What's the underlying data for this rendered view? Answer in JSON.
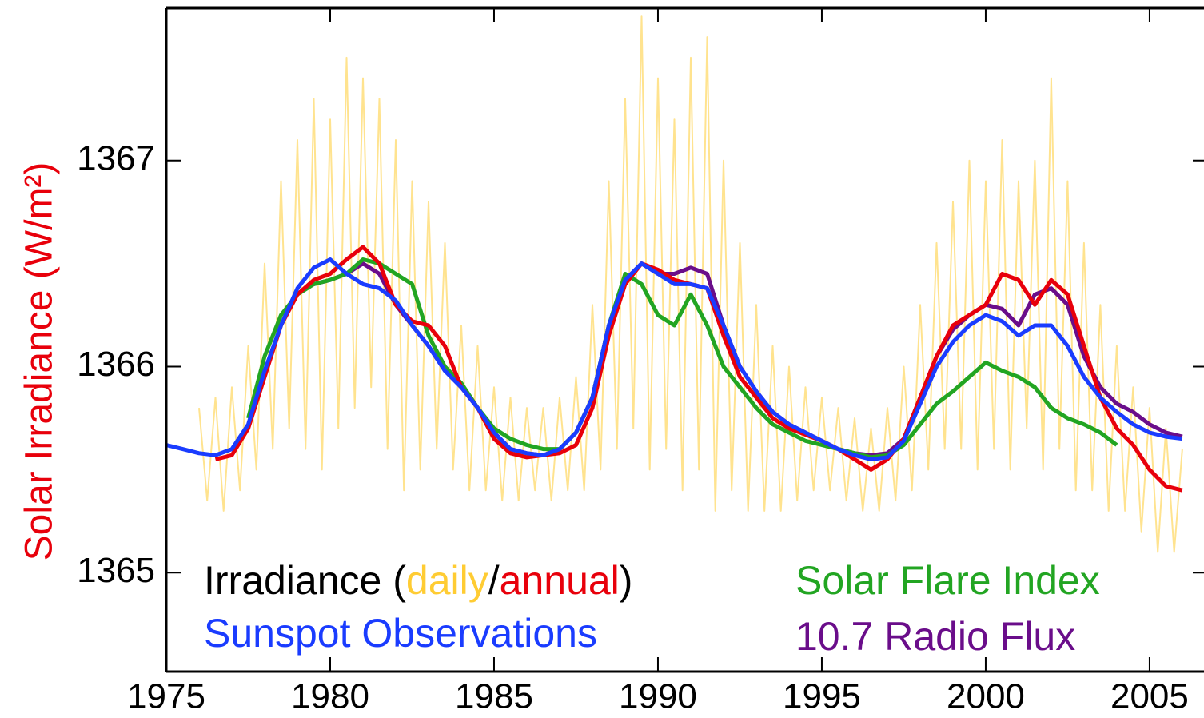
{
  "chart_data": {
    "type": "line",
    "y_label": "Solar Irradiance (W/m²)",
    "legend_prefix": "Irradiance (",
    "legend_separator": "/",
    "legend_suffix": ")",
    "xlim": [
      1975,
      2006.66
    ],
    "ylim": [
      1364.52,
      1367.74
    ],
    "xticks": [
      1975,
      1980,
      1985,
      1990,
      1995,
      2000,
      2005
    ],
    "yticks": [
      1365,
      1366,
      1367
    ],
    "x": [
      1975,
      1975.5,
      1976,
      1976.5,
      1977,
      1977.5,
      1978,
      1978.5,
      1979,
      1979.5,
      1980,
      1980.5,
      1981,
      1981.5,
      1982,
      1982.5,
      1983,
      1983.5,
      1984,
      1984.5,
      1985,
      1985.5,
      1986,
      1986.5,
      1987,
      1987.5,
      1988,
      1988.5,
      1989,
      1989.5,
      1990,
      1990.5,
      1991,
      1991.5,
      1992,
      1992.5,
      1993,
      1993.5,
      1994,
      1994.5,
      1995,
      1995.5,
      1996,
      1996.5,
      1997,
      1997.5,
      1998,
      1998.5,
      1999,
      1999.5,
      2000,
      2000.5,
      2001,
      2001.5,
      2002,
      2002.5,
      2003,
      2003.5,
      2004,
      2004.5,
      2005,
      2005.5,
      2006
    ],
    "daily": {
      "name": "daily",
      "color": "#ffcc33",
      "x": [
        1976,
        1976.25,
        1976.5,
        1976.75,
        1977,
        1977.25,
        1977.5,
        1977.75,
        1978,
        1978.25,
        1978.5,
        1978.75,
        1979,
        1979.25,
        1979.5,
        1979.75,
        1980,
        1980.25,
        1980.5,
        1980.75,
        1981,
        1981.25,
        1981.5,
        1981.75,
        1982,
        1982.25,
        1982.5,
        1982.75,
        1983,
        1983.25,
        1983.5,
        1983.75,
        1984,
        1984.25,
        1984.5,
        1984.75,
        1985,
        1985.25,
        1985.5,
        1985.75,
        1986,
        1986.25,
        1986.5,
        1986.75,
        1987,
        1987.25,
        1987.5,
        1987.75,
        1988,
        1988.25,
        1988.5,
        1988.75,
        1989,
        1989.25,
        1989.5,
        1989.75,
        1990,
        1990.25,
        1990.5,
        1990.75,
        1991,
        1991.25,
        1991.5,
        1991.75,
        1992,
        1992.25,
        1992.5,
        1992.75,
        1993,
        1993.25,
        1993.5,
        1993.75,
        1994,
        1994.25,
        1994.5,
        1994.75,
        1995,
        1995.25,
        1995.5,
        1995.75,
        1996,
        1996.25,
        1996.5,
        1996.75,
        1997,
        1997.25,
        1997.5,
        1997.75,
        1998,
        1998.25,
        1998.5,
        1998.75,
        1999,
        1999.25,
        1999.5,
        1999.75,
        2000,
        2000.25,
        2000.5,
        2000.75,
        2001,
        2001.25,
        2001.5,
        2001.75,
        2002,
        2002.25,
        2002.5,
        2002.75,
        2003,
        2003.25,
        2003.5,
        2003.75,
        2004,
        2004.25,
        2004.5,
        2004.75,
        2005,
        2005.25,
        2005.5,
        2005.75,
        2006
      ],
      "values": [
        1365.8,
        1365.35,
        1365.85,
        1365.3,
        1365.9,
        1365.4,
        1366.1,
        1365.5,
        1366.5,
        1365.6,
        1366.9,
        1365.7,
        1367.1,
        1365.6,
        1367.3,
        1365.5,
        1367.2,
        1365.7,
        1367.5,
        1365.8,
        1367.4,
        1365.9,
        1367.3,
        1365.6,
        1367.1,
        1365.4,
        1366.9,
        1365.5,
        1366.8,
        1365.6,
        1366.6,
        1365.5,
        1366.2,
        1365.4,
        1366.1,
        1365.4,
        1365.9,
        1365.35,
        1365.85,
        1365.35,
        1365.8,
        1365.4,
        1365.8,
        1365.35,
        1365.85,
        1365.4,
        1365.95,
        1365.4,
        1366.3,
        1365.5,
        1366.9,
        1365.6,
        1367.3,
        1365.7,
        1367.7,
        1365.5,
        1367.4,
        1365.6,
        1367.2,
        1365.4,
        1367.5,
        1365.5,
        1367.6,
        1365.3,
        1367.0,
        1365.4,
        1366.6,
        1365.3,
        1366.3,
        1365.3,
        1366.1,
        1365.3,
        1366.0,
        1365.35,
        1365.9,
        1365.4,
        1365.85,
        1365.4,
        1365.8,
        1365.35,
        1365.75,
        1365.3,
        1365.7,
        1365.3,
        1365.8,
        1365.35,
        1366.0,
        1365.4,
        1366.3,
        1365.5,
        1366.6,
        1365.6,
        1366.8,
        1365.6,
        1367.0,
        1365.5,
        1366.9,
        1365.6,
        1367.1,
        1365.5,
        1366.9,
        1365.7,
        1367.0,
        1365.5,
        1367.4,
        1365.6,
        1366.9,
        1365.4,
        1366.6,
        1365.4,
        1366.3,
        1365.3,
        1366.1,
        1365.3,
        1365.9,
        1365.2,
        1365.8,
        1365.1,
        1365.7,
        1365.1,
        1365.6
      ]
    },
    "series": [
      {
        "name": "10.7 Radio Flux",
        "color": "#6a0d8a",
        "values": [
          null,
          null,
          null,
          null,
          null,
          null,
          null,
          null,
          null,
          1366.4,
          1366.42,
          1366.45,
          1366.5,
          1366.45,
          1366.3,
          1366.2,
          1366.1,
          1365.98,
          1365.9,
          1365.8,
          1365.68,
          1365.6,
          1365.58,
          1365.57,
          1365.6,
          1365.68,
          1365.85,
          1366.2,
          1366.42,
          1366.5,
          1366.45,
          1366.45,
          1366.48,
          1366.45,
          1366.2,
          1366.0,
          1365.88,
          1365.78,
          1365.72,
          1365.68,
          1365.64,
          1365.6,
          1365.58,
          1365.57,
          1365.58,
          1365.65,
          1365.85,
          1366.05,
          1366.18,
          1366.25,
          1366.3,
          1366.28,
          1366.2,
          1366.35,
          1366.38,
          1366.3,
          1366.05,
          1365.9,
          1365.82,
          1365.78,
          1365.72,
          1365.68,
          1365.66
        ]
      },
      {
        "name": "Solar Flare Index",
        "color": "#22a522",
        "values": [
          null,
          null,
          null,
          null,
          null,
          1365.75,
          1366.05,
          1366.25,
          1366.35,
          1366.4,
          1366.42,
          1366.45,
          1366.52,
          1366.5,
          1366.45,
          1366.4,
          1366.15,
          1366.0,
          1365.92,
          1365.8,
          1365.7,
          1365.65,
          1365.62,
          1365.6,
          1365.6,
          1365.68,
          1365.85,
          1366.2,
          1366.45,
          1366.4,
          1366.25,
          1366.2,
          1366.35,
          1366.2,
          1366.0,
          1365.9,
          1365.8,
          1365.72,
          1365.68,
          1365.64,
          1365.62,
          1365.6,
          1365.58,
          1365.56,
          1365.57,
          1365.62,
          1365.72,
          1365.82,
          1365.88,
          1365.95,
          1366.02,
          1365.98,
          1365.95,
          1365.9,
          1365.8,
          1365.75,
          1365.72,
          1365.68,
          1365.62,
          null,
          null,
          null,
          null
        ]
      },
      {
        "name": "annual",
        "color": "#e8000b",
        "values": [
          null,
          null,
          null,
          1365.55,
          1365.57,
          1365.7,
          1365.95,
          1366.2,
          1366.35,
          1366.42,
          1366.45,
          1366.52,
          1366.58,
          1366.5,
          1366.3,
          1366.22,
          1366.2,
          1366.1,
          1365.9,
          1365.8,
          1365.65,
          1365.58,
          1365.56,
          1365.57,
          1365.58,
          1365.62,
          1365.8,
          1366.15,
          1366.4,
          1366.5,
          1366.47,
          1366.42,
          1366.4,
          1366.38,
          1366.15,
          1365.95,
          1365.85,
          1365.75,
          1365.7,
          1365.67,
          1365.64,
          1365.6,
          1365.55,
          1365.5,
          1365.55,
          1365.65,
          1365.85,
          1366.05,
          1366.2,
          1366.25,
          1366.3,
          1366.45,
          1366.42,
          1366.3,
          1366.42,
          1366.35,
          1366.1,
          1365.85,
          1365.7,
          1365.62,
          1365.5,
          1365.42,
          1365.4
        ]
      },
      {
        "name": "Sunspot Observations",
        "color": "#1a3cff",
        "values": [
          1365.62,
          1365.6,
          1365.58,
          1365.57,
          1365.6,
          1365.72,
          1365.98,
          1366.2,
          1366.38,
          1366.48,
          1366.52,
          1366.45,
          1366.4,
          1366.38,
          1366.32,
          1366.2,
          1366.1,
          1365.98,
          1365.9,
          1365.8,
          1365.68,
          1365.6,
          1365.58,
          1365.57,
          1365.6,
          1365.68,
          1365.85,
          1366.2,
          1366.42,
          1366.5,
          1366.45,
          1366.4,
          1366.4,
          1366.38,
          1366.2,
          1366.0,
          1365.88,
          1365.78,
          1365.72,
          1365.68,
          1365.64,
          1365.6,
          1365.57,
          1365.55,
          1365.56,
          1365.64,
          1365.82,
          1366.0,
          1366.12,
          1366.2,
          1366.25,
          1366.22,
          1366.15,
          1366.2,
          1366.2,
          1366.1,
          1365.95,
          1365.85,
          1365.78,
          1365.72,
          1365.68,
          1365.66,
          1365.65
        ]
      }
    ]
  }
}
